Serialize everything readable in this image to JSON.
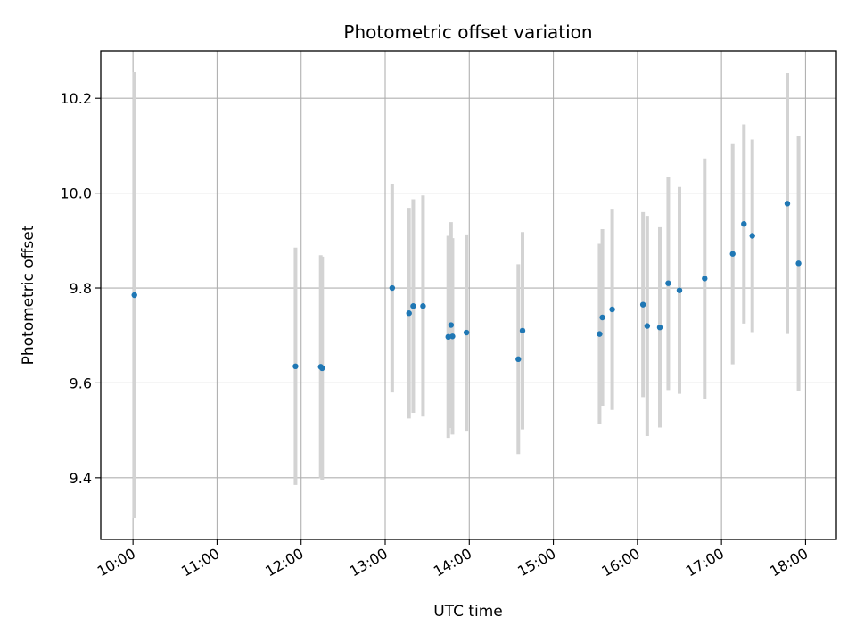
{
  "chart_data": {
    "type": "scatter",
    "title": "Photometric offset variation",
    "xlabel": "UTC time",
    "ylabel": "Photometric offset",
    "x_ticks": [
      "10:00",
      "11:00",
      "12:00",
      "13:00",
      "14:00",
      "15:00",
      "16:00",
      "17:00",
      "18:00"
    ],
    "y_ticks": [
      "9.4",
      "9.6",
      "9.8",
      "10.0",
      "10.2"
    ],
    "xlim": [
      "09:37",
      "18:22"
    ],
    "ylim": [
      9.27,
      10.3
    ],
    "grid": true,
    "colors": {
      "points": "#1f77b4",
      "errorbars": "#d3d3d3",
      "grid": "#b0b0b0"
    },
    "points": [
      {
        "t": "10:01",
        "y": 9.785,
        "yerr": 0.47
      },
      {
        "t": "11:56",
        "y": 9.635,
        "yerr": 0.25
      },
      {
        "t": "12:14",
        "y": 9.634,
        "yerr": 0.235
      },
      {
        "t": "12:15",
        "y": 9.631,
        "yerr": 0.235
      },
      {
        "t": "13:05",
        "y": 9.8,
        "yerr": 0.22
      },
      {
        "t": "13:17",
        "y": 9.747,
        "yerr": 0.222
      },
      {
        "t": "13:20",
        "y": 9.762,
        "yerr": 0.225
      },
      {
        "t": "13:27",
        "y": 9.762,
        "yerr": 0.233
      },
      {
        "t": "13:45",
        "y": 9.697,
        "yerr": 0.213
      },
      {
        "t": "13:47",
        "y": 9.722,
        "yerr": 0.217
      },
      {
        "t": "13:48",
        "y": 9.698,
        "yerr": 0.207
      },
      {
        "t": "13:58",
        "y": 9.706,
        "yerr": 0.207
      },
      {
        "t": "14:35",
        "y": 9.65,
        "yerr": 0.2
      },
      {
        "t": "14:38",
        "y": 9.71,
        "yerr": 0.208
      },
      {
        "t": "15:33",
        "y": 9.703,
        "yerr": 0.19
      },
      {
        "t": "15:35",
        "y": 9.738,
        "yerr": 0.186
      },
      {
        "t": "15:42",
        "y": 9.755,
        "yerr": 0.212
      },
      {
        "t": "16:04",
        "y": 9.765,
        "yerr": 0.195
      },
      {
        "t": "16:07",
        "y": 9.72,
        "yerr": 0.232
      },
      {
        "t": "16:16",
        "y": 9.717,
        "yerr": 0.211
      },
      {
        "t": "16:22",
        "y": 9.81,
        "yerr": 0.225
      },
      {
        "t": "16:30",
        "y": 9.795,
        "yerr": 0.218
      },
      {
        "t": "16:48",
        "y": 9.82,
        "yerr": 0.253
      },
      {
        "t": "17:08",
        "y": 9.872,
        "yerr": 0.233
      },
      {
        "t": "17:16",
        "y": 9.935,
        "yerr": 0.21
      },
      {
        "t": "17:22",
        "y": 9.91,
        "yerr": 0.203
      },
      {
        "t": "17:47",
        "y": 9.978,
        "yerr": 0.275
      },
      {
        "t": "17:55",
        "y": 9.852,
        "yerr": 0.268
      }
    ]
  }
}
